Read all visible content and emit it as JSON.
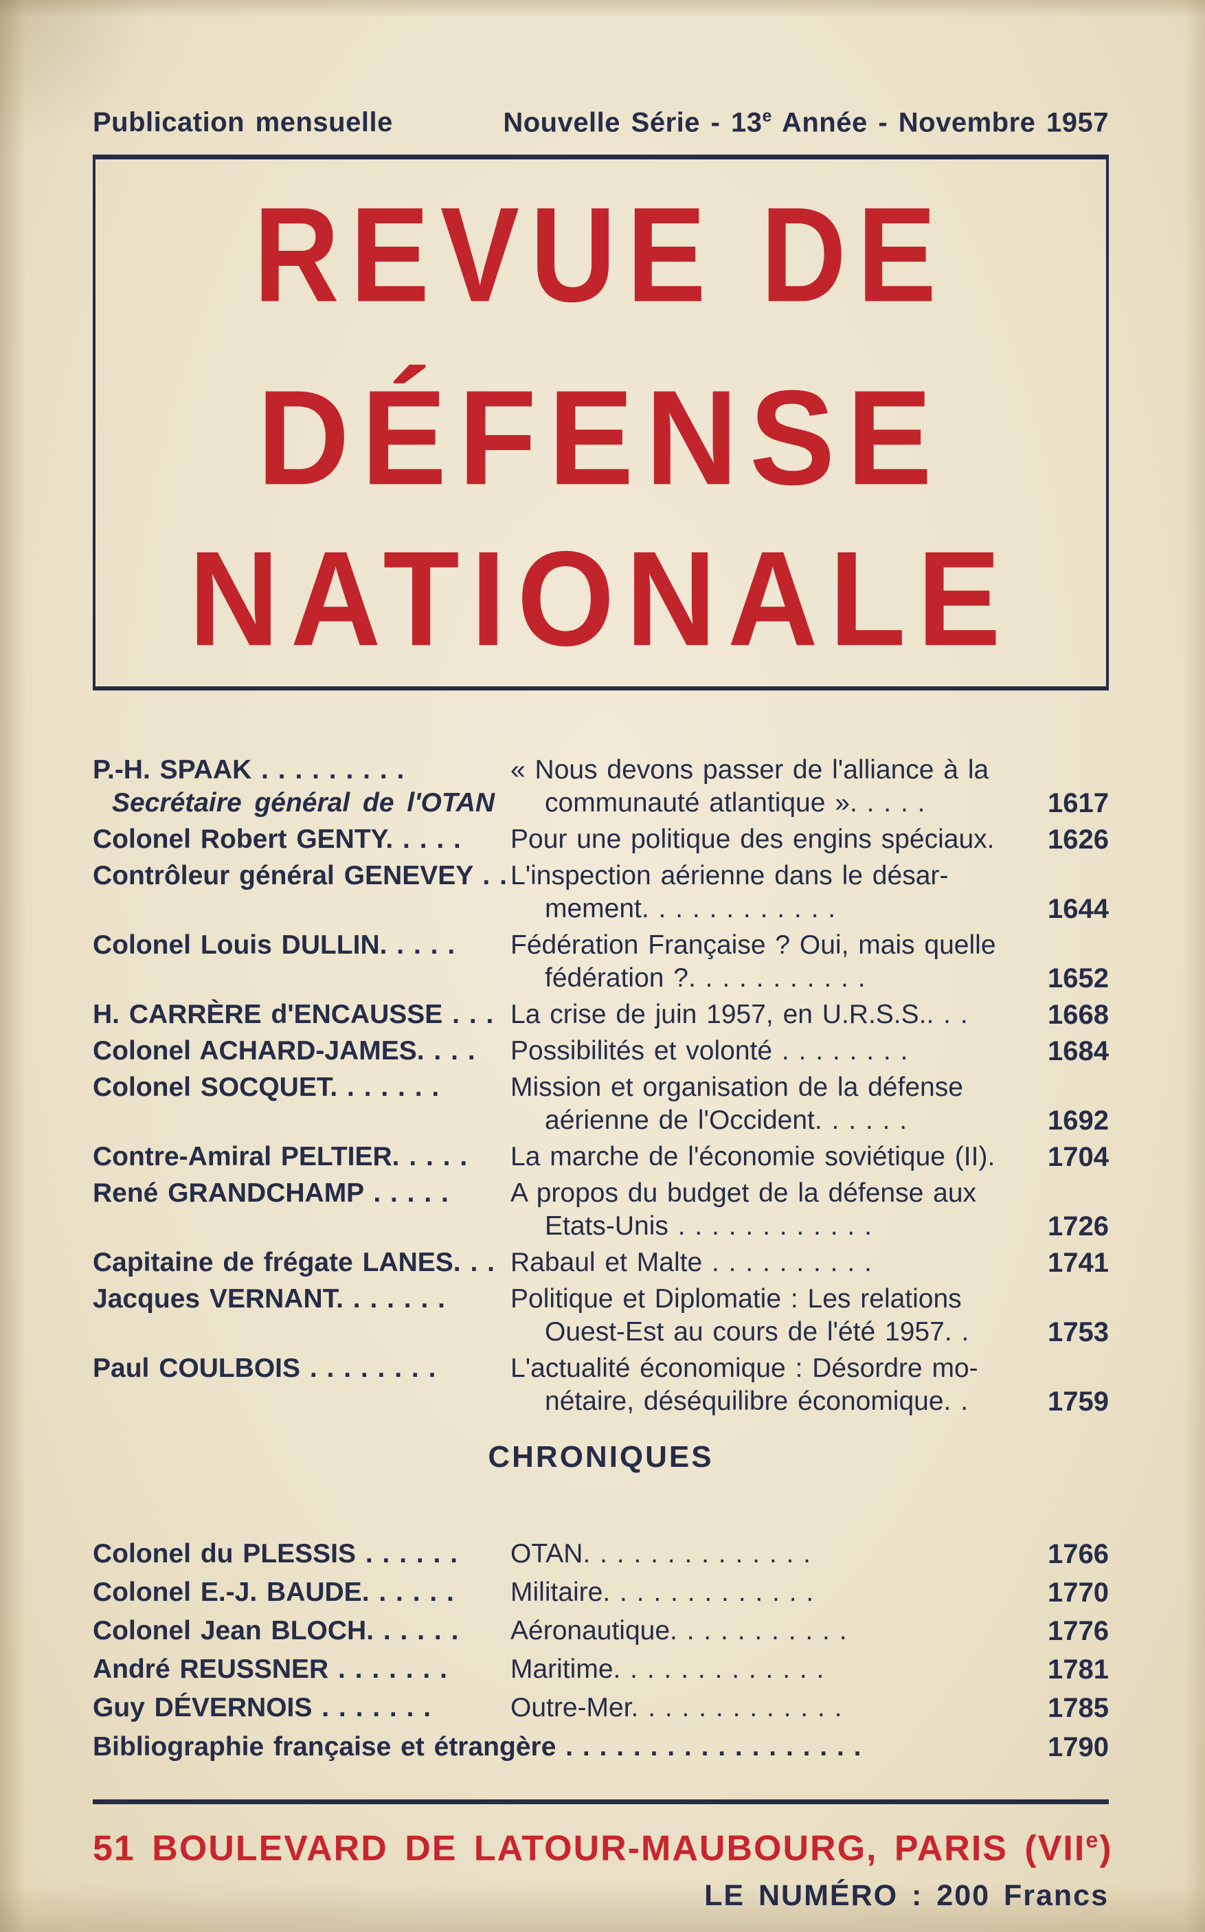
{
  "colors": {
    "background": "#ece3cb",
    "ink": "#262c48",
    "red_masthead": "#c2242c",
    "red_address": "#c8252e"
  },
  "header": {
    "left": "Publication mensuelle",
    "right_pre": "Nouvelle Série - 13",
    "right_sup": "e",
    "right_post": " Année - Novembre 1957"
  },
  "masthead": {
    "lines": [
      "REVUE DE",
      "DÉFENSE",
      "NATIONALE"
    ]
  },
  "toc": {
    "entries": [
      {
        "author": "P.-H. SPAAK . . . . . . . . .",
        "author_sub": "Secrétaire général de l'OTAN",
        "lines": [
          "« Nous devons passer de l'alliance à la",
          "communauté atlantique ». . . . ."
        ],
        "page": "1617"
      },
      {
        "author": "Colonel Robert GENTY. . . . .",
        "lines": [
          "Pour une politique des engins spéciaux."
        ],
        "page": "1626"
      },
      {
        "author": "Contrôleur général GENEVEY . .",
        "lines": [
          "L'inspection aérienne dans le désar-",
          "mement. . . . . . . . . . . ."
        ],
        "page": "1644"
      },
      {
        "author": "Colonel Louis DULLIN. . . . .",
        "lines": [
          "Fédération Française ? Oui, mais quelle",
          "fédération ?. . . . . . . . . . ."
        ],
        "page": "1652"
      },
      {
        "author": "H. CARRÈRE d'ENCAUSSE . . .",
        "lines": [
          "La crise de juin 1957, en U.R.S.S.. . ."
        ],
        "page": "1668"
      },
      {
        "author": "Colonel ACHARD-JAMES. . . .",
        "lines": [
          "Possibilités et volonté . . . . . . . ."
        ],
        "page": "1684"
      },
      {
        "author": "Colonel SOCQUET. . . . . . .",
        "lines": [
          "Mission et organisation de la défense",
          "aérienne de l'Occident. . . . . ."
        ],
        "page": "1692"
      },
      {
        "author": "Contre-Amiral PELTIER. . . . .",
        "lines": [
          "La marche de l'économie soviétique (II)."
        ],
        "page": "1704"
      },
      {
        "author": "René GRANDCHAMP . . . . .",
        "lines": [
          "A propos du budget de la défense aux",
          "Etats-Unis . . . . . . . . . . . ."
        ],
        "page": "1726"
      },
      {
        "author": "Capitaine de frégate LANES. . .",
        "lines": [
          "Rabaul et Malte . . . . . . . . . ."
        ],
        "page": "1741"
      },
      {
        "author": "Jacques VERNANT. . . . . . .",
        "lines": [
          "Politique et Diplomatie : Les relations",
          "Ouest-Est au cours de l'été 1957. ."
        ],
        "page": "1753"
      },
      {
        "author": "Paul COULBOIS . . . . . . . .",
        "lines": [
          "L'actualité économique : Désordre mo-",
          "nétaire, déséquilibre économique. ."
        ],
        "page": "1759"
      }
    ]
  },
  "chroniques": {
    "heading": "CHRONIQUES",
    "entries": [
      {
        "author": "Colonel du PLESSIS . . . . . .",
        "lines": [
          "OTAN. . . . . . . . . . . . . ."
        ],
        "page": "1766"
      },
      {
        "author": "Colonel E.-J. BAUDE. . . . . .",
        "lines": [
          "Militaire. . . . . . . . . . . . ."
        ],
        "page": "1770"
      },
      {
        "author": "Colonel Jean BLOCH. . . . . .",
        "lines": [
          "Aéronautique. . . . . . . . . . ."
        ],
        "page": "1776"
      },
      {
        "author": "André REUSSNER . . . . . . .",
        "lines": [
          "Maritime. . . . . . . . . . . . ."
        ],
        "page": "1781"
      },
      {
        "author": "Guy DÉVERNOIS . . . . . . .",
        "lines": [
          "Outre-Mer. . . . . . . . . . . . ."
        ],
        "page": "1785"
      }
    ],
    "biblio": {
      "text": "Bibliographie française et étrangère . . . . . . . . . . . . . . . . . .",
      "page": "1790"
    }
  },
  "footer": {
    "address_pre": "51 BOULEVARD DE LATOUR-MAUBOURG, PARIS (VII",
    "address_sup": "e",
    "address_post": ")",
    "price": "LE NUMÉRO : 200 Francs"
  }
}
